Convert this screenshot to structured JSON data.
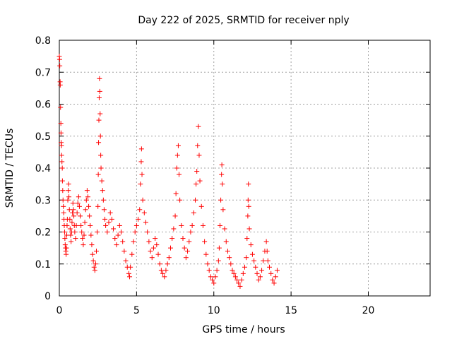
{
  "chart_data": {
    "type": "scatter",
    "title": "Day 222 of 2025, SRMTID for receiver nply",
    "xlabel": "GPS time / hours",
    "ylabel": "SRMTID / TECUs",
    "xlim": [
      0,
      24
    ],
    "ylim": [
      0,
      0.8
    ],
    "xticks": [
      0,
      5,
      10,
      15,
      20
    ],
    "yticks": [
      0,
      0.1,
      0.2,
      0.3,
      0.4,
      0.5,
      0.6,
      0.7,
      0.8
    ],
    "xtick_labels": [
      "0",
      "5",
      "10",
      "15",
      "20"
    ],
    "ytick_labels": [
      "0",
      "0.1",
      "0.2",
      "0.3",
      "0.4",
      "0.5",
      "0.6",
      "0.7",
      "0.8"
    ],
    "grid": true,
    "marker": "+",
    "color": "#ff0000",
    "series": [
      {
        "name": "SRMTID",
        "points": [
          [
            0.0,
            0.75
          ],
          [
            0.02,
            0.74
          ],
          [
            0.03,
            0.72
          ],
          [
            0.05,
            0.67
          ],
          [
            0.06,
            0.66
          ],
          [
            0.08,
            0.59
          ],
          [
            0.1,
            0.54
          ],
          [
            0.11,
            0.51
          ],
          [
            0.12,
            0.48
          ],
          [
            0.14,
            0.47
          ],
          [
            0.15,
            0.44
          ],
          [
            0.17,
            0.42
          ],
          [
            0.19,
            0.4
          ],
          [
            0.2,
            0.36
          ],
          [
            0.22,
            0.33
          ],
          [
            0.24,
            0.3
          ],
          [
            0.26,
            0.28
          ],
          [
            0.28,
            0.26
          ],
          [
            0.3,
            0.24
          ],
          [
            0.32,
            0.22
          ],
          [
            0.34,
            0.2
          ],
          [
            0.36,
            0.18
          ],
          [
            0.38,
            0.16
          ],
          [
            0.4,
            0.15
          ],
          [
            0.42,
            0.14
          ],
          [
            0.44,
            0.13
          ],
          [
            0.46,
            0.15
          ],
          [
            0.48,
            0.19
          ],
          [
            0.5,
            0.22
          ],
          [
            0.52,
            0.24
          ],
          [
            0.55,
            0.3
          ],
          [
            0.58,
            0.33
          ],
          [
            0.6,
            0.35
          ],
          [
            0.62,
            0.31
          ],
          [
            0.65,
            0.27
          ],
          [
            0.68,
            0.24
          ],
          [
            0.7,
            0.21
          ],
          [
            0.73,
            0.19
          ],
          [
            0.76,
            0.17
          ],
          [
            0.79,
            0.2
          ],
          [
            0.82,
            0.23
          ],
          [
            0.85,
            0.26
          ],
          [
            0.88,
            0.29
          ],
          [
            0.91,
            0.27
          ],
          [
            0.94,
            0.25
          ],
          [
            0.97,
            0.22
          ],
          [
            1.0,
            0.2
          ],
          [
            1.05,
            0.18
          ],
          [
            1.1,
            0.22
          ],
          [
            1.15,
            0.26
          ],
          [
            1.2,
            0.29
          ],
          [
            1.25,
            0.31
          ],
          [
            1.3,
            0.28
          ],
          [
            1.35,
            0.25
          ],
          [
            1.4,
            0.22
          ],
          [
            1.45,
            0.2
          ],
          [
            1.5,
            0.18
          ],
          [
            1.55,
            0.16
          ],
          [
            1.6,
            0.19
          ],
          [
            1.65,
            0.23
          ],
          [
            1.7,
            0.27
          ],
          [
            1.75,
            0.3
          ],
          [
            1.8,
            0.33
          ],
          [
            1.85,
            0.31
          ],
          [
            1.9,
            0.28
          ],
          [
            1.95,
            0.25
          ],
          [
            2.0,
            0.22
          ],
          [
            2.05,
            0.19
          ],
          [
            2.1,
            0.16
          ],
          [
            2.15,
            0.13
          ],
          [
            2.2,
            0.11
          ],
          [
            2.25,
            0.09
          ],
          [
            2.3,
            0.08
          ],
          [
            2.35,
            0.1
          ],
          [
            2.4,
            0.14
          ],
          [
            2.45,
            0.2
          ],
          [
            2.5,
            0.28
          ],
          [
            2.52,
            0.38
          ],
          [
            2.54,
            0.48
          ],
          [
            2.56,
            0.55
          ],
          [
            2.58,
            0.62
          ],
          [
            2.6,
            0.68
          ],
          [
            2.62,
            0.64
          ],
          [
            2.64,
            0.57
          ],
          [
            2.66,
            0.5
          ],
          [
            2.68,
            0.44
          ],
          [
            2.7,
            0.4
          ],
          [
            2.75,
            0.36
          ],
          [
            2.8,
            0.33
          ],
          [
            2.85,
            0.3
          ],
          [
            2.9,
            0.27
          ],
          [
            2.95,
            0.24
          ],
          [
            3.0,
            0.22
          ],
          [
            3.1,
            0.2
          ],
          [
            3.2,
            0.23
          ],
          [
            3.3,
            0.26
          ],
          [
            3.4,
            0.24
          ],
          [
            3.5,
            0.21
          ],
          [
            3.6,
            0.18
          ],
          [
            3.7,
            0.16
          ],
          [
            3.8,
            0.19
          ],
          [
            3.9,
            0.22
          ],
          [
            4.0,
            0.2
          ],
          [
            4.1,
            0.17
          ],
          [
            4.2,
            0.14
          ],
          [
            4.3,
            0.11
          ],
          [
            4.4,
            0.09
          ],
          [
            4.5,
            0.07
          ],
          [
            4.55,
            0.06
          ],
          [
            4.6,
            0.09
          ],
          [
            4.7,
            0.13
          ],
          [
            4.8,
            0.17
          ],
          [
            4.9,
            0.2
          ],
          [
            5.0,
            0.22
          ],
          [
            5.1,
            0.24
          ],
          [
            5.2,
            0.27
          ],
          [
            5.25,
            0.35
          ],
          [
            5.3,
            0.42
          ],
          [
            5.32,
            0.46
          ],
          [
            5.35,
            0.38
          ],
          [
            5.4,
            0.3
          ],
          [
            5.5,
            0.26
          ],
          [
            5.6,
            0.23
          ],
          [
            5.7,
            0.2
          ],
          [
            5.8,
            0.17
          ],
          [
            5.9,
            0.14
          ],
          [
            6.0,
            0.12
          ],
          [
            6.1,
            0.15
          ],
          [
            6.2,
            0.18
          ],
          [
            6.3,
            0.16
          ],
          [
            6.4,
            0.13
          ],
          [
            6.5,
            0.1
          ],
          [
            6.6,
            0.08
          ],
          [
            6.7,
            0.07
          ],
          [
            6.8,
            0.06
          ],
          [
            6.9,
            0.08
          ],
          [
            7.0,
            0.1
          ],
          [
            7.1,
            0.12
          ],
          [
            7.2,
            0.15
          ],
          [
            7.3,
            0.18
          ],
          [
            7.4,
            0.21
          ],
          [
            7.5,
            0.25
          ],
          [
            7.55,
            0.32
          ],
          [
            7.6,
            0.4
          ],
          [
            7.65,
            0.44
          ],
          [
            7.7,
            0.47
          ],
          [
            7.75,
            0.38
          ],
          [
            7.8,
            0.3
          ],
          [
            7.9,
            0.22
          ],
          [
            8.0,
            0.18
          ],
          [
            8.1,
            0.15
          ],
          [
            8.2,
            0.12
          ],
          [
            8.3,
            0.14
          ],
          [
            8.4,
            0.17
          ],
          [
            8.5,
            0.2
          ],
          [
            8.6,
            0.22
          ],
          [
            8.7,
            0.26
          ],
          [
            8.8,
            0.3
          ],
          [
            8.85,
            0.35
          ],
          [
            8.9,
            0.39
          ],
          [
            8.95,
            0.47
          ],
          [
            9.0,
            0.53
          ],
          [
            9.05,
            0.44
          ],
          [
            9.1,
            0.36
          ],
          [
            9.2,
            0.28
          ],
          [
            9.3,
            0.22
          ],
          [
            9.4,
            0.17
          ],
          [
            9.5,
            0.13
          ],
          [
            9.6,
            0.1
          ],
          [
            9.7,
            0.08
          ],
          [
            9.8,
            0.06
          ],
          [
            9.9,
            0.05
          ],
          [
            10.0,
            0.04
          ],
          [
            10.1,
            0.06
          ],
          [
            10.2,
            0.08
          ],
          [
            10.3,
            0.11
          ],
          [
            10.35,
            0.15
          ],
          [
            10.4,
            0.22
          ],
          [
            10.45,
            0.3
          ],
          [
            10.5,
            0.38
          ],
          [
            10.52,
            0.41
          ],
          [
            10.55,
            0.35
          ],
          [
            10.6,
            0.27
          ],
          [
            10.7,
            0.21
          ],
          [
            10.8,
            0.17
          ],
          [
            10.9,
            0.14
          ],
          [
            11.0,
            0.12
          ],
          [
            11.1,
            0.1
          ],
          [
            11.2,
            0.08
          ],
          [
            11.3,
            0.07
          ],
          [
            11.4,
            0.06
          ],
          [
            11.5,
            0.05
          ],
          [
            11.6,
            0.04
          ],
          [
            11.7,
            0.03
          ],
          [
            11.8,
            0.05
          ],
          [
            11.9,
            0.07
          ],
          [
            12.0,
            0.09
          ],
          [
            12.1,
            0.12
          ],
          [
            12.15,
            0.18
          ],
          [
            12.2,
            0.25
          ],
          [
            12.22,
            0.3
          ],
          [
            12.24,
            0.35
          ],
          [
            12.26,
            0.28
          ],
          [
            12.3,
            0.21
          ],
          [
            12.4,
            0.16
          ],
          [
            12.5,
            0.13
          ],
          [
            12.6,
            0.11
          ],
          [
            12.7,
            0.09
          ],
          [
            12.8,
            0.07
          ],
          [
            12.9,
            0.05
          ],
          [
            13.0,
            0.06
          ],
          [
            13.1,
            0.08
          ],
          [
            13.2,
            0.11
          ],
          [
            13.3,
            0.14
          ],
          [
            13.4,
            0.17
          ],
          [
            13.45,
            0.14
          ],
          [
            13.5,
            0.11
          ],
          [
            13.6,
            0.09
          ],
          [
            13.7,
            0.07
          ],
          [
            13.8,
            0.05
          ],
          [
            13.9,
            0.04
          ],
          [
            14.0,
            0.06
          ],
          [
            14.1,
            0.08
          ]
        ]
      }
    ]
  }
}
